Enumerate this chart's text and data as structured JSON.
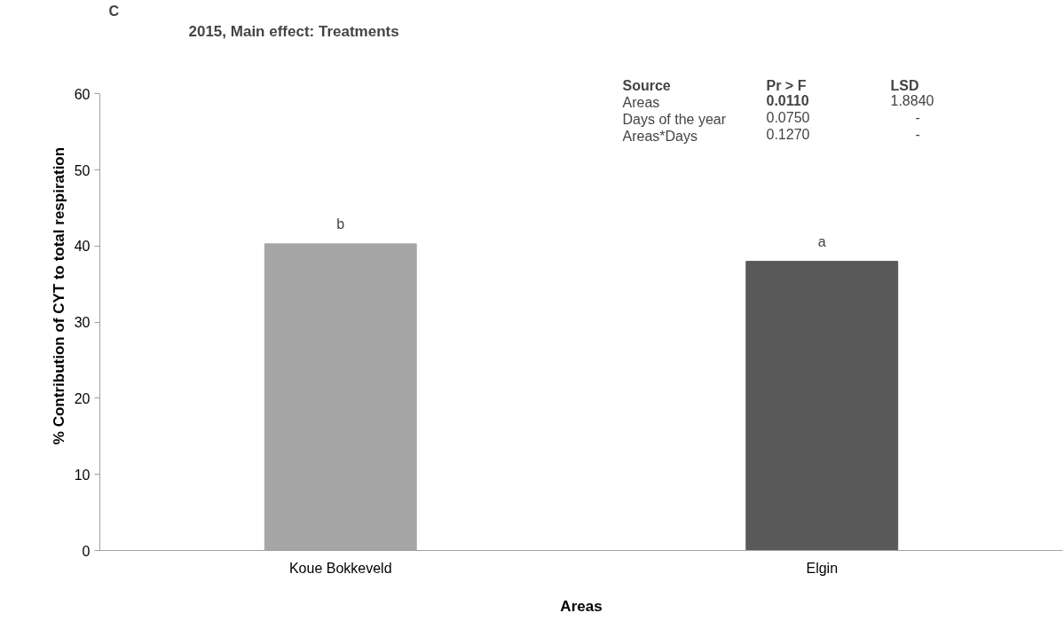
{
  "chart_data": {
    "type": "bar",
    "title": "2015, Main effect: Treatments",
    "xlabel": "Areas",
    "ylabel": "% Contribution of CYT to total respiration",
    "categories": [
      "Koue Bokkeveld",
      "Elgin"
    ],
    "values": [
      40.3,
      38.0
    ],
    "colors": [
      "#a6a6a6",
      "#595959"
    ],
    "ylim": [
      0,
      60
    ],
    "yticks": [
      0,
      10,
      20,
      30,
      40,
      50,
      60
    ],
    "grid": false,
    "annotations": [
      "C",
      {
        "text": "b",
        "x": "Koue Bokkeveld",
        "y": 40.3
      },
      {
        "text": "a",
        "x": "Elgin",
        "y": 38.0
      },
      "Source",
      "Pr > F",
      "LSD",
      "Areas",
      "0.0110",
      "1.8840",
      "Days of the year",
      "0.0750",
      "-",
      "Areas*Days",
      "0.1270",
      "-"
    ]
  }
}
